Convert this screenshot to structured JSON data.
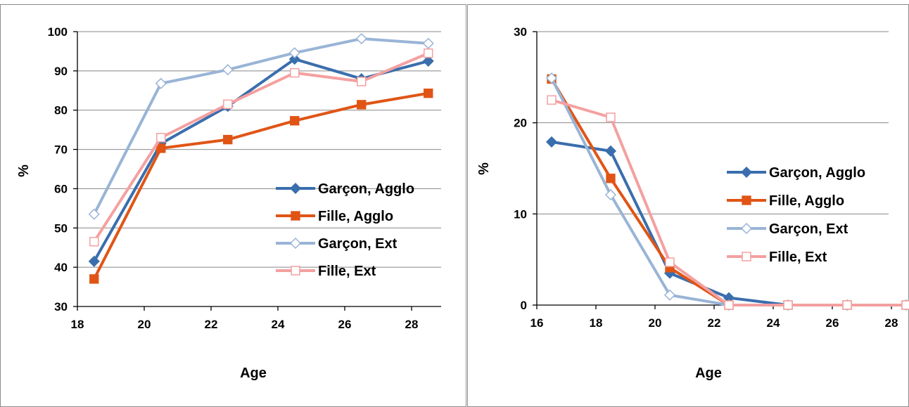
{
  "chart_data": [
    {
      "type": "line",
      "title": "",
      "xlabel": "Age",
      "ylabel": "%",
      "xlim": [
        18,
        29
      ],
      "ylim": [
        30,
        100
      ],
      "xticks": [
        18,
        20,
        22,
        24,
        26,
        28
      ],
      "yticks": [
        30,
        40,
        50,
        60,
        70,
        80,
        90,
        100
      ],
      "grid": true,
      "legend_position": "right",
      "series": [
        {
          "name": "Garçon, Agglo",
          "color": "#3a6ead",
          "marker": "diamond-filled",
          "x": [
            18.5,
            20.5,
            22.5,
            24.5,
            26.5,
            28.5
          ],
          "y": [
            41.5,
            71.5,
            81,
            93,
            88,
            92.5
          ]
        },
        {
          "name": "Fille,  Agglo",
          "color": "#e05516",
          "marker": "square-filled",
          "x": [
            18.5,
            20.5,
            22.5,
            24.5,
            26.5,
            28.5
          ],
          "y": [
            37,
            70.3,
            72.5,
            77.3,
            81.4,
            84.3
          ]
        },
        {
          "name": "Garçon, Ext",
          "color": "#99b4d6",
          "marker": "diamond-open",
          "x": [
            18.5,
            20.5,
            22.5,
            24.5,
            26.5,
            28.5
          ],
          "y": [
            53.5,
            86.8,
            90.3,
            94.6,
            98.2,
            97
          ]
        },
        {
          "name": "Fille,  Ext",
          "color": "#f4a0a0",
          "marker": "square-open",
          "x": [
            18.5,
            20.5,
            22.5,
            24.5,
            26.5,
            28.5
          ],
          "y": [
            46.5,
            73,
            81.5,
            89.5,
            87.3,
            94.5
          ]
        }
      ]
    },
    {
      "type": "line",
      "title": "",
      "xlabel": "Age",
      "ylabel": "%",
      "xlim": [
        16,
        29
      ],
      "ylim": [
        0,
        30
      ],
      "xticks": [
        16,
        18,
        20,
        22,
        24,
        26,
        28
      ],
      "yticks": [
        0,
        10,
        20,
        30
      ],
      "grid": true,
      "legend_position": "right",
      "series": [
        {
          "name": "Garçon, Agglo",
          "color": "#3a6ead",
          "marker": "diamond-filled",
          "x": [
            16.5,
            18.5,
            20.5,
            22.5,
            24.5,
            26.5,
            28.5
          ],
          "y": [
            17.9,
            16.9,
            3.5,
            0.8,
            0,
            0,
            0
          ]
        },
        {
          "name": "Fille,  Agglo",
          "color": "#e05516",
          "marker": "square-filled",
          "x": [
            16.5,
            18.5,
            20.5,
            22.5,
            24.5,
            26.5,
            28.5
          ],
          "y": [
            24.8,
            13.9,
            4.1,
            0,
            0,
            0,
            0
          ]
        },
        {
          "name": "Garçon, Ext",
          "color": "#99b4d6",
          "marker": "diamond-open",
          "x": [
            16.5,
            18.5,
            20.5,
            22.5,
            24.5,
            26.5,
            28.5
          ],
          "y": [
            24.9,
            12.1,
            1.1,
            0,
            0,
            0,
            0
          ]
        },
        {
          "name": "Fille,  Ext",
          "color": "#f4a0a0",
          "marker": "square-open",
          "x": [
            16.5,
            18.5,
            20.5,
            22.5,
            24.5,
            26.5,
            28.5
          ],
          "y": [
            22.5,
            20.6,
            4.7,
            0,
            0,
            0,
            0
          ]
        }
      ]
    }
  ]
}
